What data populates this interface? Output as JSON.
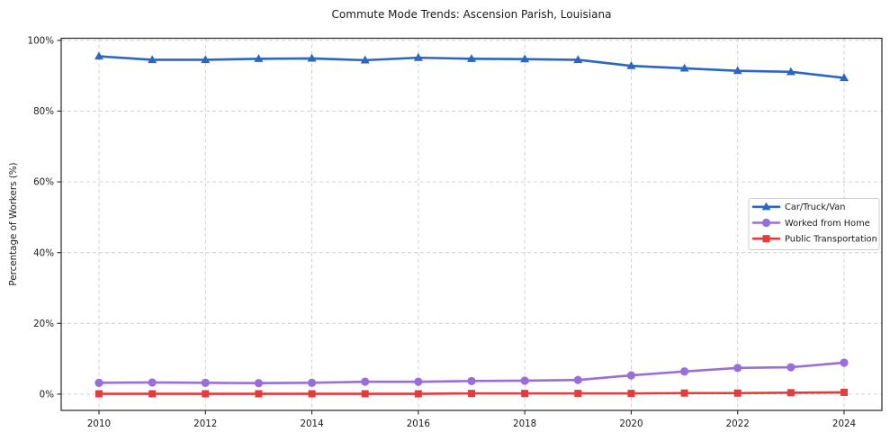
{
  "chart_data": {
    "type": "line",
    "title": "Commute Mode Trends: Ascension Parish, Louisiana",
    "xlabel": "",
    "ylabel": "Percentage of Workers (%)",
    "x": [
      2010,
      2011,
      2012,
      2013,
      2014,
      2015,
      2016,
      2017,
      2018,
      2019,
      2020,
      2021,
      2022,
      2023,
      2024
    ],
    "series": [
      {
        "name": "Car/Truck/Van",
        "color": "#2b67c2",
        "marker": "triangle",
        "values": [
          95.5,
          94.5,
          94.5,
          94.8,
          94.9,
          94.4,
          95.1,
          94.8,
          94.7,
          94.5,
          92.8,
          92.1,
          91.4,
          91.1,
          89.4
        ]
      },
      {
        "name": "Worked from Home",
        "color": "#9a6ed8",
        "marker": "circle",
        "values": [
          3.2,
          3.3,
          3.2,
          3.1,
          3.2,
          3.5,
          3.5,
          3.7,
          3.8,
          4.0,
          5.3,
          6.4,
          7.4,
          7.6,
          8.9
        ]
      },
      {
        "name": "Public Transportation",
        "color": "#e23c3c",
        "marker": "square",
        "values": [
          0.1,
          0.1,
          0.1,
          0.1,
          0.1,
          0.1,
          0.1,
          0.2,
          0.2,
          0.2,
          0.2,
          0.3,
          0.3,
          0.4,
          0.5
        ]
      }
    ],
    "xticks": [
      2010,
      2012,
      2014,
      2016,
      2018,
      2020,
      2022,
      2024
    ],
    "xtick_labels": [
      "2010",
      "2012",
      "2014",
      "2016",
      "2018",
      "2020",
      "2022",
      "2024"
    ],
    "yticks": [
      0,
      20,
      40,
      60,
      80,
      100
    ],
    "ytick_labels": [
      "0%",
      "20%",
      "40%",
      "60%",
      "80%",
      "100%"
    ],
    "xlim": [
      2009.29,
      2024.71
    ],
    "ylim": [
      -4.6,
      100.6
    ],
    "grid": true,
    "grid_style": "dashed",
    "legend_position": "center right",
    "colors": {
      "grid": "#cbcbcb",
      "axis": "#262626",
      "text": "#1a1a1a",
      "background": "#ffffff"
    }
  }
}
